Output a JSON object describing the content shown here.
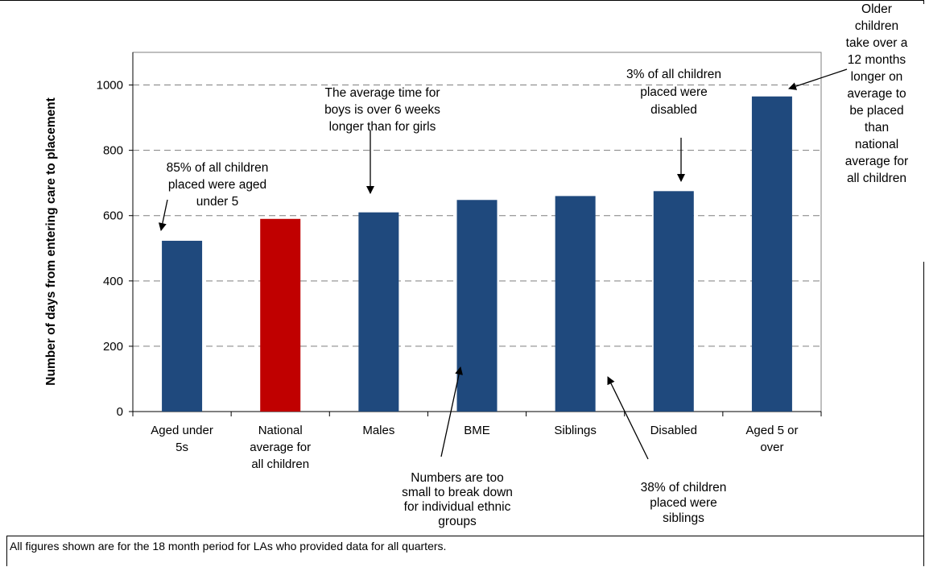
{
  "chart_data": {
    "type": "bar",
    "categories": [
      [
        "Aged under",
        "5s"
      ],
      [
        "National",
        "average for",
        "all children"
      ],
      [
        "Males"
      ],
      [
        "BME"
      ],
      [
        "Siblings"
      ],
      [
        "Disabled"
      ],
      [
        "Aged 5 or",
        "over"
      ]
    ],
    "values": [
      523,
      590,
      610,
      648,
      660,
      675,
      965
    ],
    "bar_colors": [
      "#1F497D",
      "#C00000",
      "#1F497D",
      "#1F497D",
      "#1F497D",
      "#1F497D",
      "#1F497D"
    ],
    "ylabel": "Number of days from entering care to placement",
    "ylim": [
      0,
      1100
    ],
    "yticks": [
      0,
      200,
      400,
      600,
      800,
      1000
    ],
    "grid": "dashed horizontal",
    "annotations": [
      [
        "85% of all children",
        "placed were aged",
        "under 5"
      ],
      [
        "The  average  time for",
        "boys is over  6 weeks",
        "longer than for girls"
      ],
      [
        "3% of all children",
        "placed were",
        "disabled"
      ],
      [
        "Older",
        "children",
        "take over a",
        "12 months",
        "longer on",
        "average to",
        "be placed",
        "than",
        "national",
        "average for",
        "all children"
      ],
      [
        "Numbers  are too",
        "small to break down",
        "for individual  ethnic",
        "groups"
      ],
      [
        "38% of children",
        "placed were",
        "siblings"
      ]
    ]
  },
  "footnote": "All figures shown are for the 18 month period for LAs who provided data for all quarters."
}
